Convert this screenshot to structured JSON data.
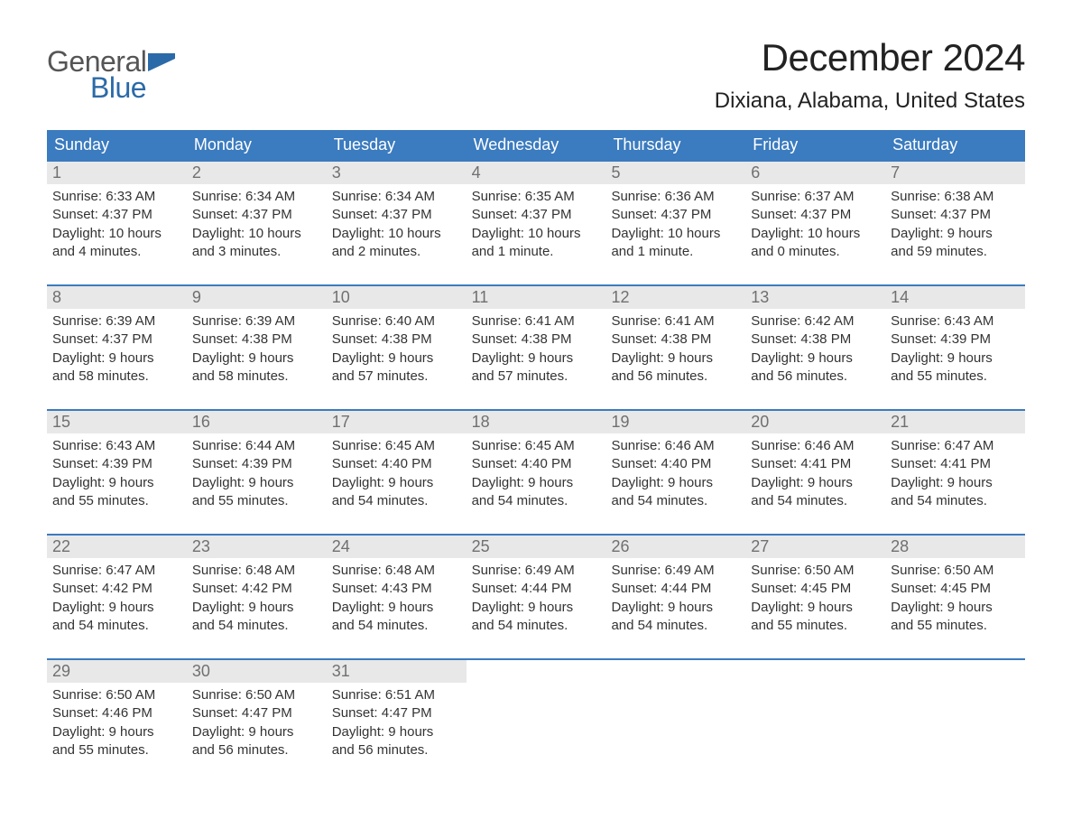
{
  "logo": {
    "text_general": "General",
    "text_blue": "Blue",
    "flag_color": "#2b6aa8"
  },
  "title": "December 2024",
  "location": "Dixiana, Alabama, United States",
  "colors": {
    "header_bg": "#3b7bbf",
    "header_text": "#ffffff",
    "week_border": "#3b7bbf",
    "daynum_bg": "#e8e8e8",
    "daynum_text": "#707070",
    "body_text": "#333333",
    "background": "#ffffff"
  },
  "typography": {
    "title_fontsize": 42,
    "location_fontsize": 24,
    "header_fontsize": 18,
    "daynum_fontsize": 18,
    "body_fontsize": 15
  },
  "day_headers": [
    "Sunday",
    "Monday",
    "Tuesday",
    "Wednesday",
    "Thursday",
    "Friday",
    "Saturday"
  ],
  "weeks": [
    [
      {
        "num": "1",
        "sunrise": "Sunrise: 6:33 AM",
        "sunset": "Sunset: 4:37 PM",
        "day1": "Daylight: 10 hours",
        "day2": "and 4 minutes."
      },
      {
        "num": "2",
        "sunrise": "Sunrise: 6:34 AM",
        "sunset": "Sunset: 4:37 PM",
        "day1": "Daylight: 10 hours",
        "day2": "and 3 minutes."
      },
      {
        "num": "3",
        "sunrise": "Sunrise: 6:34 AM",
        "sunset": "Sunset: 4:37 PM",
        "day1": "Daylight: 10 hours",
        "day2": "and 2 minutes."
      },
      {
        "num": "4",
        "sunrise": "Sunrise: 6:35 AM",
        "sunset": "Sunset: 4:37 PM",
        "day1": "Daylight: 10 hours",
        "day2": "and 1 minute."
      },
      {
        "num": "5",
        "sunrise": "Sunrise: 6:36 AM",
        "sunset": "Sunset: 4:37 PM",
        "day1": "Daylight: 10 hours",
        "day2": "and 1 minute."
      },
      {
        "num": "6",
        "sunrise": "Sunrise: 6:37 AM",
        "sunset": "Sunset: 4:37 PM",
        "day1": "Daylight: 10 hours",
        "day2": "and 0 minutes."
      },
      {
        "num": "7",
        "sunrise": "Sunrise: 6:38 AM",
        "sunset": "Sunset: 4:37 PM",
        "day1": "Daylight: 9 hours",
        "day2": "and 59 minutes."
      }
    ],
    [
      {
        "num": "8",
        "sunrise": "Sunrise: 6:39 AM",
        "sunset": "Sunset: 4:37 PM",
        "day1": "Daylight: 9 hours",
        "day2": "and 58 minutes."
      },
      {
        "num": "9",
        "sunrise": "Sunrise: 6:39 AM",
        "sunset": "Sunset: 4:38 PM",
        "day1": "Daylight: 9 hours",
        "day2": "and 58 minutes."
      },
      {
        "num": "10",
        "sunrise": "Sunrise: 6:40 AM",
        "sunset": "Sunset: 4:38 PM",
        "day1": "Daylight: 9 hours",
        "day2": "and 57 minutes."
      },
      {
        "num": "11",
        "sunrise": "Sunrise: 6:41 AM",
        "sunset": "Sunset: 4:38 PM",
        "day1": "Daylight: 9 hours",
        "day2": "and 57 minutes."
      },
      {
        "num": "12",
        "sunrise": "Sunrise: 6:41 AM",
        "sunset": "Sunset: 4:38 PM",
        "day1": "Daylight: 9 hours",
        "day2": "and 56 minutes."
      },
      {
        "num": "13",
        "sunrise": "Sunrise: 6:42 AM",
        "sunset": "Sunset: 4:38 PM",
        "day1": "Daylight: 9 hours",
        "day2": "and 56 minutes."
      },
      {
        "num": "14",
        "sunrise": "Sunrise: 6:43 AM",
        "sunset": "Sunset: 4:39 PM",
        "day1": "Daylight: 9 hours",
        "day2": "and 55 minutes."
      }
    ],
    [
      {
        "num": "15",
        "sunrise": "Sunrise: 6:43 AM",
        "sunset": "Sunset: 4:39 PM",
        "day1": "Daylight: 9 hours",
        "day2": "and 55 minutes."
      },
      {
        "num": "16",
        "sunrise": "Sunrise: 6:44 AM",
        "sunset": "Sunset: 4:39 PM",
        "day1": "Daylight: 9 hours",
        "day2": "and 55 minutes."
      },
      {
        "num": "17",
        "sunrise": "Sunrise: 6:45 AM",
        "sunset": "Sunset: 4:40 PM",
        "day1": "Daylight: 9 hours",
        "day2": "and 54 minutes."
      },
      {
        "num": "18",
        "sunrise": "Sunrise: 6:45 AM",
        "sunset": "Sunset: 4:40 PM",
        "day1": "Daylight: 9 hours",
        "day2": "and 54 minutes."
      },
      {
        "num": "19",
        "sunrise": "Sunrise: 6:46 AM",
        "sunset": "Sunset: 4:40 PM",
        "day1": "Daylight: 9 hours",
        "day2": "and 54 minutes."
      },
      {
        "num": "20",
        "sunrise": "Sunrise: 6:46 AM",
        "sunset": "Sunset: 4:41 PM",
        "day1": "Daylight: 9 hours",
        "day2": "and 54 minutes."
      },
      {
        "num": "21",
        "sunrise": "Sunrise: 6:47 AM",
        "sunset": "Sunset: 4:41 PM",
        "day1": "Daylight: 9 hours",
        "day2": "and 54 minutes."
      }
    ],
    [
      {
        "num": "22",
        "sunrise": "Sunrise: 6:47 AM",
        "sunset": "Sunset: 4:42 PM",
        "day1": "Daylight: 9 hours",
        "day2": "and 54 minutes."
      },
      {
        "num": "23",
        "sunrise": "Sunrise: 6:48 AM",
        "sunset": "Sunset: 4:42 PM",
        "day1": "Daylight: 9 hours",
        "day2": "and 54 minutes."
      },
      {
        "num": "24",
        "sunrise": "Sunrise: 6:48 AM",
        "sunset": "Sunset: 4:43 PM",
        "day1": "Daylight: 9 hours",
        "day2": "and 54 minutes."
      },
      {
        "num": "25",
        "sunrise": "Sunrise: 6:49 AM",
        "sunset": "Sunset: 4:44 PM",
        "day1": "Daylight: 9 hours",
        "day2": "and 54 minutes."
      },
      {
        "num": "26",
        "sunrise": "Sunrise: 6:49 AM",
        "sunset": "Sunset: 4:44 PM",
        "day1": "Daylight: 9 hours",
        "day2": "and 54 minutes."
      },
      {
        "num": "27",
        "sunrise": "Sunrise: 6:50 AM",
        "sunset": "Sunset: 4:45 PM",
        "day1": "Daylight: 9 hours",
        "day2": "and 55 minutes."
      },
      {
        "num": "28",
        "sunrise": "Sunrise: 6:50 AM",
        "sunset": "Sunset: 4:45 PM",
        "day1": "Daylight: 9 hours",
        "day2": "and 55 minutes."
      }
    ],
    [
      {
        "num": "29",
        "sunrise": "Sunrise: 6:50 AM",
        "sunset": "Sunset: 4:46 PM",
        "day1": "Daylight: 9 hours",
        "day2": "and 55 minutes."
      },
      {
        "num": "30",
        "sunrise": "Sunrise: 6:50 AM",
        "sunset": "Sunset: 4:47 PM",
        "day1": "Daylight: 9 hours",
        "day2": "and 56 minutes."
      },
      {
        "num": "31",
        "sunrise": "Sunrise: 6:51 AM",
        "sunset": "Sunset: 4:47 PM",
        "day1": "Daylight: 9 hours",
        "day2": "and 56 minutes."
      },
      {
        "num": "",
        "sunrise": "",
        "sunset": "",
        "day1": "",
        "day2": ""
      },
      {
        "num": "",
        "sunrise": "",
        "sunset": "",
        "day1": "",
        "day2": ""
      },
      {
        "num": "",
        "sunrise": "",
        "sunset": "",
        "day1": "",
        "day2": ""
      },
      {
        "num": "",
        "sunrise": "",
        "sunset": "",
        "day1": "",
        "day2": ""
      }
    ]
  ]
}
